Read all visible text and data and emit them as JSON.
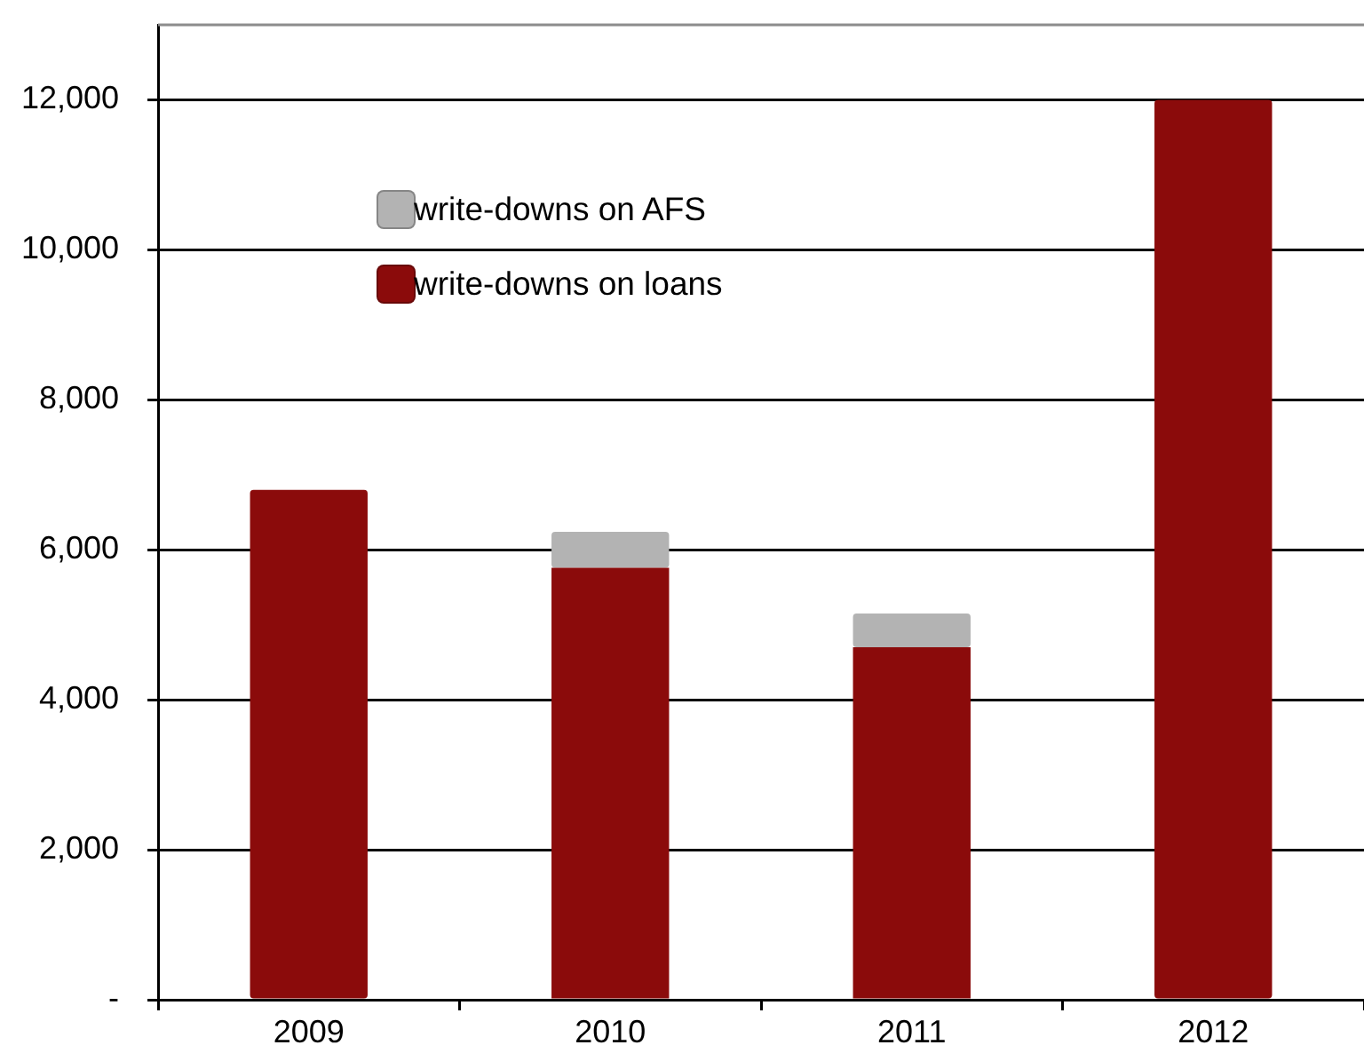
{
  "chart_data": {
    "type": "bar",
    "stacked": true,
    "categories": [
      "2009",
      "2010",
      "2011",
      "2012"
    ],
    "series": [
      {
        "name": "write-downs on loans",
        "color": "#8b0b0b",
        "values": [
          6800,
          5760,
          4700,
          12000
        ]
      },
      {
        "name": "write-downs on AFS",
        "color": "#b3b3b3",
        "values": [
          0,
          480,
          450,
          0
        ]
      }
    ],
    "ylim": [
      0,
      13000
    ],
    "yticks": [
      {
        "value": 0,
        "label": "-"
      },
      {
        "value": 2000,
        "label": "2,000"
      },
      {
        "value": 4000,
        "label": "4,000"
      },
      {
        "value": 6000,
        "label": "6,000"
      },
      {
        "value": 8000,
        "label": "8,000"
      },
      {
        "value": 10000,
        "label": "10,000"
      },
      {
        "value": 12000,
        "label": "12,000"
      }
    ],
    "grid": "y",
    "legend": "top left"
  }
}
